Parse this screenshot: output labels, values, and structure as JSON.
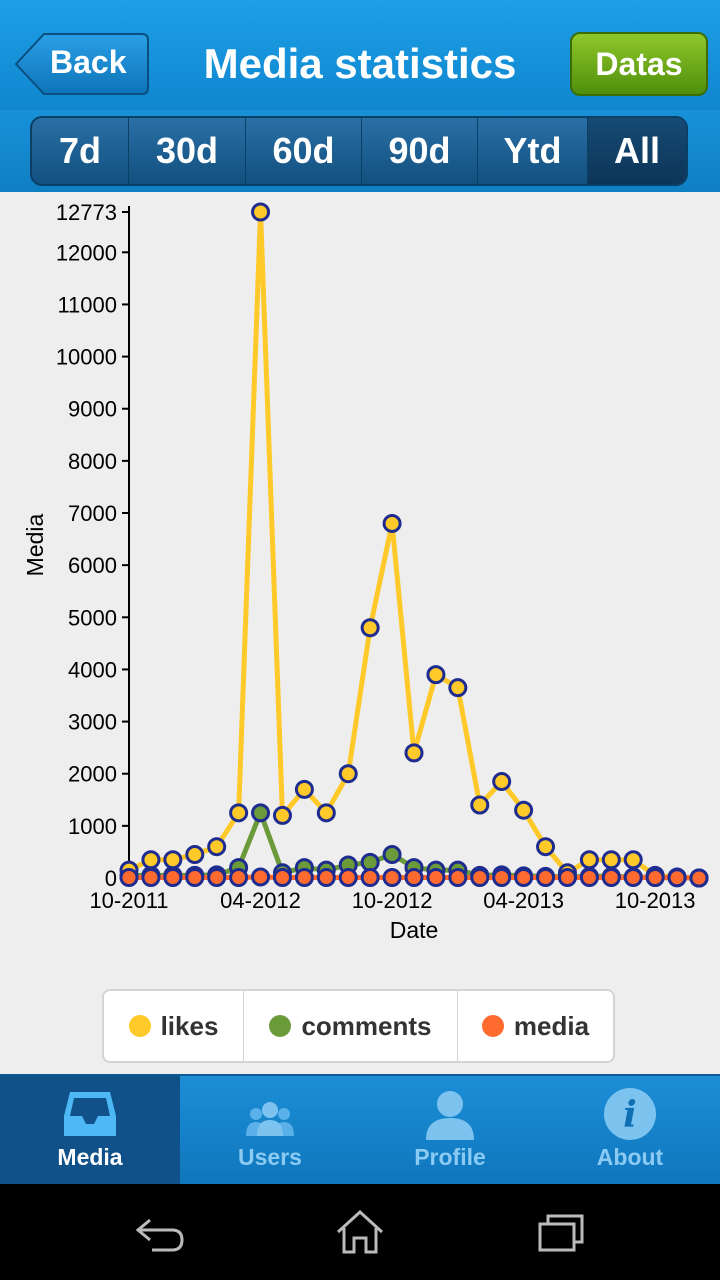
{
  "header": {
    "back_label": "Back",
    "title": "Media statistics",
    "datas_label": "Datas"
  },
  "ranges": [
    {
      "label": "7d",
      "active": false
    },
    {
      "label": "30d",
      "active": false
    },
    {
      "label": "60d",
      "active": false
    },
    {
      "label": "90d",
      "active": false
    },
    {
      "label": "Ytd",
      "active": false
    },
    {
      "label": "All",
      "active": true
    }
  ],
  "chart_data": {
    "type": "line",
    "xlabel": "Date",
    "ylabel": "Media",
    "ylim": [
      0,
      12773
    ],
    "y_ticks": [
      0,
      1000,
      2000,
      3000,
      4000,
      5000,
      6000,
      7000,
      8000,
      9000,
      10000,
      11000,
      12000,
      12773
    ],
    "x_ticks": [
      "10-2011",
      "04-2012",
      "10-2012",
      "04-2013",
      "10-2013"
    ],
    "x": [
      "10-2011",
      "11-2011",
      "12-2011",
      "01-2012",
      "02-2012",
      "03-2012",
      "04-2012",
      "05-2012",
      "06-2012",
      "07-2012",
      "08-2012",
      "09-2012",
      "10-2012",
      "11-2012",
      "12-2012",
      "01-2013",
      "02-2013",
      "03-2013",
      "04-2013",
      "05-2013",
      "06-2013",
      "07-2013",
      "08-2013",
      "09-2013",
      "10-2013",
      "11-2013",
      "12-2013"
    ],
    "series": [
      {
        "name": "likes",
        "color": "#ffc929",
        "values": [
          150,
          350,
          350,
          450,
          600,
          1250,
          12773,
          1200,
          1700,
          1250,
          2000,
          4800,
          6800,
          2400,
          3900,
          3650,
          1400,
          1850,
          1300,
          600,
          100,
          350,
          350,
          350,
          50,
          20,
          0
        ]
      },
      {
        "name": "comments",
        "color": "#6a9a3a",
        "values": [
          50,
          50,
          50,
          50,
          60,
          200,
          1250,
          100,
          200,
          150,
          250,
          300,
          450,
          200,
          150,
          150,
          50,
          60,
          40,
          30,
          20,
          30,
          30,
          20,
          10,
          5,
          0
        ]
      },
      {
        "name": "media",
        "color": "#ff6a2e",
        "values": [
          10,
          10,
          10,
          10,
          10,
          10,
          20,
          10,
          10,
          10,
          10,
          10,
          10,
          10,
          10,
          10,
          10,
          10,
          10,
          10,
          10,
          10,
          10,
          10,
          10,
          5,
          0
        ]
      }
    ],
    "legend_position": "bottom"
  },
  "legend": [
    {
      "label": "likes",
      "color": "#ffc929"
    },
    {
      "label": "comments",
      "color": "#6a9a3a"
    },
    {
      "label": "media",
      "color": "#ff6a2e"
    }
  ],
  "tabs": [
    {
      "label": "Media",
      "icon": "tray-icon",
      "active": true
    },
    {
      "label": "Users",
      "icon": "users-icon",
      "active": false
    },
    {
      "label": "Profile",
      "icon": "person-icon",
      "active": false
    },
    {
      "label": "About",
      "icon": "info-icon",
      "active": false
    }
  ],
  "system_nav": [
    "back-nav-icon",
    "home-nav-icon",
    "recents-nav-icon"
  ]
}
